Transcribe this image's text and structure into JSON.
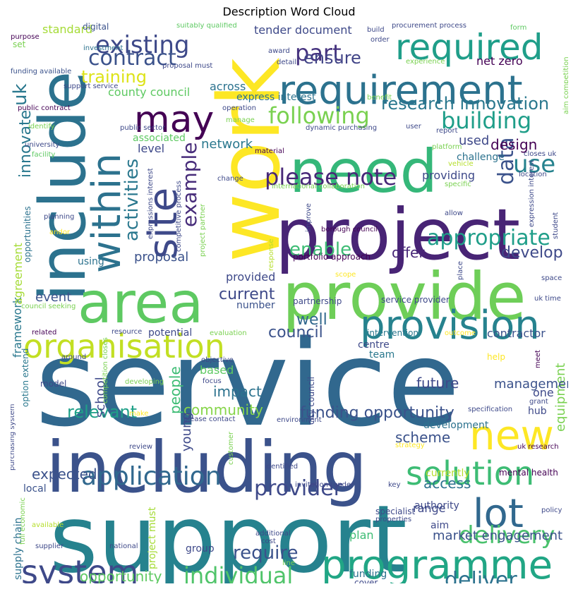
{
  "chart_data": {
    "type": "word_cloud",
    "title": "Description Word Cloud",
    "palette": "viridis",
    "words": [
      {
        "text": "service",
        "color": "#31688e"
      },
      {
        "text": "support",
        "color": "#26828e"
      },
      {
        "text": "work",
        "color": "#fde725"
      },
      {
        "text": "including",
        "color": "#3b528b"
      },
      {
        "text": "project",
        "color": "#482475"
      },
      {
        "text": "include",
        "color": "#2c728e"
      },
      {
        "text": "provide",
        "color": "#6ece58"
      },
      {
        "text": "need",
        "color": "#35b779"
      },
      {
        "text": "area",
        "color": "#5ec962"
      },
      {
        "text": "requirement",
        "color": "#2c728e"
      },
      {
        "text": "programme",
        "color": "#21a685"
      },
      {
        "text": "provision",
        "color": "#26828e"
      },
      {
        "text": "organisation",
        "color": "#c2df23"
      },
      {
        "text": "required",
        "color": "#1f9e89"
      },
      {
        "text": "within",
        "color": "#2c728e"
      },
      {
        "text": "site",
        "color": "#3e4989"
      },
      {
        "text": "may",
        "color": "#440154"
      },
      {
        "text": "lot",
        "color": "#31688e"
      },
      {
        "text": "new",
        "color": "#fde725"
      },
      {
        "text": "system",
        "color": "#3e4989"
      },
      {
        "text": "solution",
        "color": "#3dbc74"
      },
      {
        "text": "existing",
        "color": "#3e4989"
      },
      {
        "text": "application",
        "color": "#31688e"
      },
      {
        "text": "delivery",
        "color": "#4ac16d"
      },
      {
        "text": "individual",
        "color": "#50c46a"
      },
      {
        "text": "appropriate",
        "color": "#1f9e89"
      },
      {
        "text": "following",
        "color": "#7ad151"
      },
      {
        "text": "building",
        "color": "#1f9e89"
      },
      {
        "text": "use",
        "color": "#26828e"
      },
      {
        "text": "contract",
        "color": "#3b528b"
      },
      {
        "text": "part",
        "color": "#46337f"
      },
      {
        "text": "please note",
        "color": "#482878"
      },
      {
        "text": "example",
        "color": "#472c7a"
      },
      {
        "text": "activities",
        "color": "#2a788e"
      },
      {
        "text": "data",
        "color": "#3b528b"
      },
      {
        "text": "deliver",
        "color": "#2c728e"
      },
      {
        "text": "provider",
        "color": "#3e4989"
      },
      {
        "text": "research innovation",
        "color": "#2a788e"
      },
      {
        "text": "ensure",
        "color": "#414487"
      },
      {
        "text": "training",
        "color": "#dde318"
      },
      {
        "text": "enable",
        "color": "#3dbc74"
      },
      {
        "text": "require",
        "color": "#3b528b"
      },
      {
        "text": "develop",
        "color": "#3e4989"
      },
      {
        "text": "uk",
        "color": "#2a788e"
      },
      {
        "text": "innovate",
        "color": "#2a788e"
      },
      {
        "text": "council",
        "color": "#3b528b"
      },
      {
        "text": "funding opportunity",
        "color": "#3b528b"
      },
      {
        "text": "current",
        "color": "#3e4989"
      },
      {
        "text": "well",
        "color": "#31688e"
      },
      {
        "text": "people",
        "color": "#3dbc74"
      },
      {
        "text": "design",
        "color": "#440154"
      },
      {
        "text": "community",
        "color": "#86d549"
      },
      {
        "text": "relevant",
        "color": "#1fa088"
      },
      {
        "text": "impact",
        "color": "#2c728e"
      },
      {
        "text": "future",
        "color": "#3e4989"
      },
      {
        "text": "expected",
        "color": "#3b528b"
      },
      {
        "text": "scheme",
        "color": "#3b528b"
      },
      {
        "text": "access",
        "color": "#2c728e"
      },
      {
        "text": "proposal",
        "color": "#3b528b"
      },
      {
        "text": "equipment",
        "color": "#7ad151"
      },
      {
        "text": "offer",
        "color": "#482878"
      },
      {
        "text": "event",
        "color": "#3b528b"
      },
      {
        "text": "young",
        "color": "#3e4989"
      },
      {
        "text": "school",
        "color": "#3e4989"
      },
      {
        "text": "management",
        "color": "#3b528b"
      },
      {
        "text": "opportunity",
        "color": "#5ec962"
      },
      {
        "text": "market engagement",
        "color": "#3b528b"
      },
      {
        "text": "network",
        "color": "#2a788e"
      },
      {
        "text": "level",
        "color": "#3e4989"
      },
      {
        "text": "providing",
        "color": "#3e4989"
      },
      {
        "text": "used",
        "color": "#3e4989"
      },
      {
        "text": "contractor",
        "color": "#3b528b"
      },
      {
        "text": "framework",
        "color": "#2a788e"
      },
      {
        "text": "provided",
        "color": "#3e4989"
      },
      {
        "text": "tender document",
        "color": "#3e4989"
      },
      {
        "text": "range",
        "color": "#3e4989"
      },
      {
        "text": "plan",
        "color": "#3dbc74"
      },
      {
        "text": "county council",
        "color": "#5ec962"
      },
      {
        "text": "agreement",
        "color": "#a5db36"
      },
      {
        "text": "number",
        "color": "#3b528b"
      },
      {
        "text": "team",
        "color": "#2a788e"
      },
      {
        "text": "based",
        "color": "#5ec962"
      },
      {
        "text": "standard",
        "color": "#a5db36"
      },
      {
        "text": "digital",
        "color": "#3b528b"
      },
      {
        "text": "across",
        "color": "#2c728e"
      },
      {
        "text": "one",
        "color": "#3e4989"
      },
      {
        "text": "hub",
        "color": "#3e4989"
      },
      {
        "text": "net zero",
        "color": "#440154"
      },
      {
        "text": "challenge",
        "color": "#2c728e"
      },
      {
        "text": "express interest",
        "color": "#2c728e"
      },
      {
        "text": "currently",
        "color": "#b5de2b"
      },
      {
        "text": "authority",
        "color": "#3e4989"
      },
      {
        "text": "centre",
        "color": "#3e4989"
      },
      {
        "text": "supply chain",
        "color": "#2c728e"
      },
      {
        "text": "development",
        "color": "#2c728e"
      },
      {
        "text": "potential",
        "color": "#3e4989"
      },
      {
        "text": "local",
        "color": "#3b528b"
      },
      {
        "text": "using",
        "color": "#2c728e"
      },
      {
        "text": "opportunities",
        "color": "#2c728e"
      },
      {
        "text": "option extend",
        "color": "#2a788e"
      },
      {
        "text": "project must",
        "color": "#a5db36"
      },
      {
        "text": "aim",
        "color": "#3e4989"
      },
      {
        "text": "group",
        "color": "#3e4989"
      },
      {
        "text": "funding",
        "color": "#2c728e"
      },
      {
        "text": "model",
        "color": "#3e4989"
      },
      {
        "text": "mental health",
        "color": "#440154"
      },
      {
        "text": "specialist",
        "color": "#3e4989"
      },
      {
        "text": "partnership",
        "color": "#3e4989"
      },
      {
        "text": "associated",
        "color": "#5ec962"
      },
      {
        "text": "portfolio approach",
        "color": "#440154"
      },
      {
        "text": "city council",
        "color": "#3e4989"
      },
      {
        "text": "service provider",
        "color": "#3e4989"
      },
      {
        "text": "intervention",
        "color": "#2a788e"
      },
      {
        "text": "cover",
        "color": "#3e4989"
      },
      {
        "text": "specification",
        "color": "#3e4989"
      },
      {
        "text": "suitably qualified",
        "color": "#5ec962"
      },
      {
        "text": "procurement process",
        "color": "#3e4989"
      },
      {
        "text": "purpose",
        "color": "#440154"
      },
      {
        "text": "set",
        "color": "#7ad151"
      },
      {
        "text": "investment",
        "color": "#2c728e"
      },
      {
        "text": "funding available",
        "color": "#3b528b"
      },
      {
        "text": "support service",
        "color": "#3e4989"
      },
      {
        "text": "public contract",
        "color": "#440154"
      },
      {
        "text": "identify",
        "color": "#7ad151"
      },
      {
        "text": "university",
        "color": "#3e4989"
      },
      {
        "text": "facility",
        "color": "#5ec962"
      },
      {
        "text": "planning",
        "color": "#3e4989"
      },
      {
        "text": "andor",
        "color": "#fde725"
      },
      {
        "text": "council seeking",
        "color": "#7ad151"
      },
      {
        "text": "related",
        "color": "#440154"
      },
      {
        "text": "around",
        "color": "#3e4989"
      },
      {
        "text": "purchasing system",
        "color": "#3e4989"
      },
      {
        "text": "full economic",
        "color": "#7ad151"
      },
      {
        "text": "available",
        "color": "#b5de2b"
      },
      {
        "text": "supplier",
        "color": "#3e4989"
      },
      {
        "text": "national",
        "color": "#3e4989"
      },
      {
        "text": "proposal must",
        "color": "#3e4989"
      },
      {
        "text": "award",
        "color": "#3e4989"
      },
      {
        "text": "detail",
        "color": "#3e4989"
      },
      {
        "text": "build",
        "color": "#3e4989"
      },
      {
        "text": "order",
        "color": "#3e4989"
      },
      {
        "text": "form",
        "color": "#5ec962"
      },
      {
        "text": "experience",
        "color": "#7ad151"
      },
      {
        "text": "benefit",
        "color": "#7ad151"
      },
      {
        "text": "operation",
        "color": "#3e4989"
      },
      {
        "text": "manage",
        "color": "#7ad151"
      },
      {
        "text": "public sector",
        "color": "#3e4989"
      },
      {
        "text": "dynamic purchasing",
        "color": "#3e4989"
      },
      {
        "text": "user",
        "color": "#3e4989"
      },
      {
        "text": "report",
        "color": "#3e4989"
      },
      {
        "text": "platform",
        "color": "#7ad151"
      },
      {
        "text": "vehicle",
        "color": "#b5de2b"
      },
      {
        "text": "closes uk",
        "color": "#3e4989"
      },
      {
        "text": "location",
        "color": "#3e4989"
      },
      {
        "text": "specific",
        "color": "#7ad151"
      },
      {
        "text": "aim competition",
        "color": "#7ad151"
      },
      {
        "text": "material",
        "color": "#440154"
      },
      {
        "text": "change",
        "color": "#3e4989"
      },
      {
        "text": "international collaboration",
        "color": "#7ad151"
      },
      {
        "text": "expressions interest",
        "color": "#3e4989"
      },
      {
        "text": "competitive process",
        "color": "#3e4989"
      },
      {
        "text": "project partner",
        "color": "#7ad151"
      },
      {
        "text": "improve",
        "color": "#3e4989"
      },
      {
        "text": "borough council",
        "color": "#440154"
      },
      {
        "text": "allow",
        "color": "#3e4989"
      },
      {
        "text": "expression interest",
        "color": "#3e4989"
      },
      {
        "text": "student",
        "color": "#3e4989"
      },
      {
        "text": "response",
        "color": "#b5de2b"
      },
      {
        "text": "scope",
        "color": "#fde725"
      },
      {
        "text": "place",
        "color": "#3e4989"
      },
      {
        "text": "space",
        "color": "#3e4989"
      },
      {
        "text": "uk time",
        "color": "#3e4989"
      },
      {
        "text": "resource",
        "color": "#3e4989"
      },
      {
        "text": "evaluation",
        "color": "#7ad151"
      },
      {
        "text": "outcome",
        "color": "#fde725"
      },
      {
        "text": "objective",
        "color": "#3e4989"
      },
      {
        "text": "focus",
        "color": "#3e4989"
      },
      {
        "text": "help",
        "color": "#fde725"
      },
      {
        "text": "meet",
        "color": "#440154"
      },
      {
        "text": "grant",
        "color": "#3e4989"
      },
      {
        "text": "competition closes",
        "color": "#7ad151"
      },
      {
        "text": "developing",
        "color": "#7ad151"
      },
      {
        "text": "make",
        "color": "#fde725"
      },
      {
        "text": "please contact",
        "color": "#3e4989"
      },
      {
        "text": "environment",
        "color": "#3e4989"
      },
      {
        "text": "review",
        "color": "#3e4989"
      },
      {
        "text": "customer",
        "color": "#7ad151"
      },
      {
        "text": "strategy",
        "color": "#fde725"
      },
      {
        "text": "uk research",
        "color": "#440154"
      },
      {
        "text": "identified",
        "color": "#3e4989"
      },
      {
        "text": "invitation tender",
        "color": "#3e4989"
      },
      {
        "text": "key",
        "color": "#3e4989"
      },
      {
        "text": "properties",
        "color": "#3e4989"
      },
      {
        "text": "additional",
        "color": "#3e4989"
      },
      {
        "text": "cost",
        "color": "#3e4989"
      },
      {
        "text": "line",
        "color": "#7ad151"
      },
      {
        "text": "policy",
        "color": "#3e4989"
      }
    ]
  }
}
